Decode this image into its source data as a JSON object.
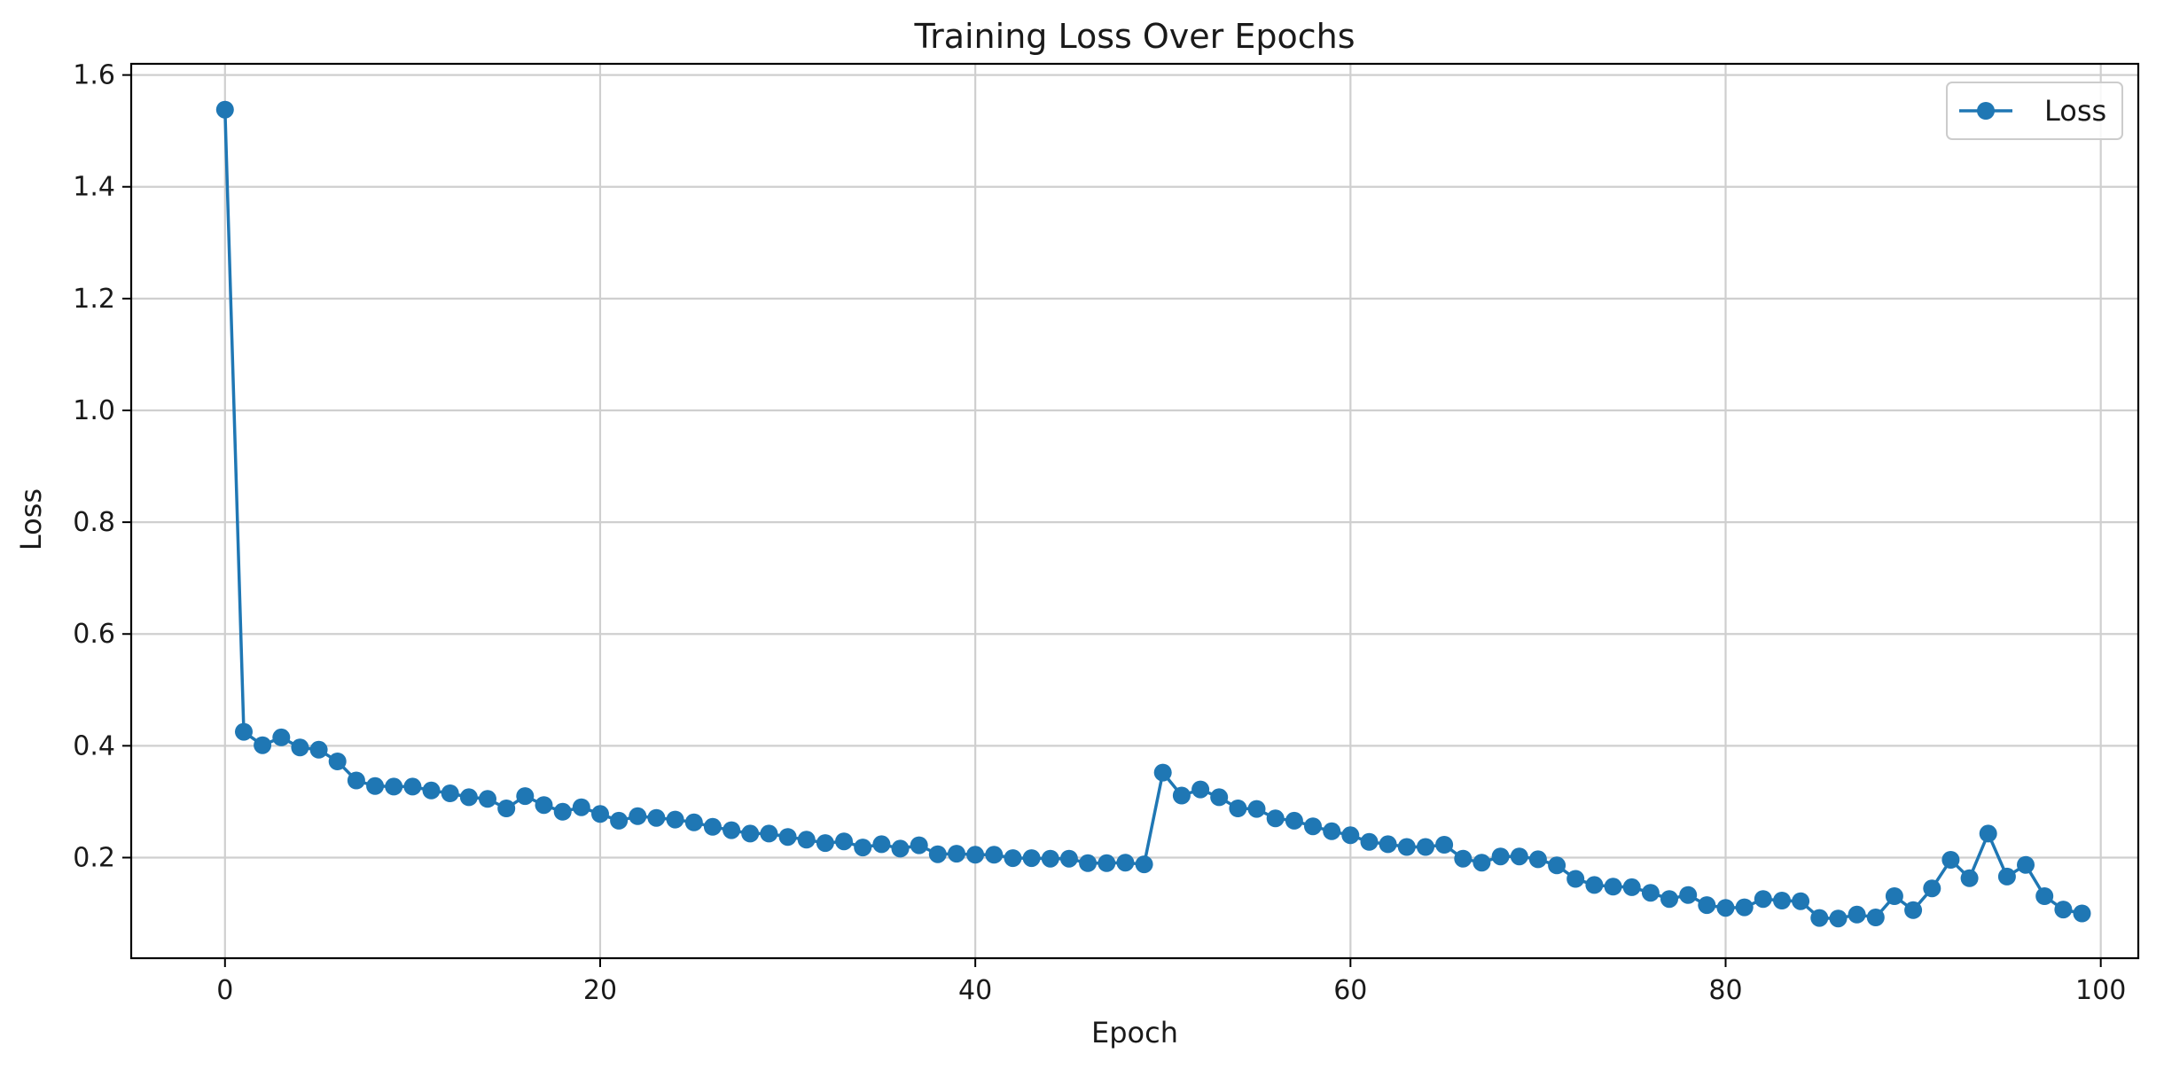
{
  "chart_data": {
    "type": "line",
    "title": "Training Loss Over Epochs",
    "xlabel": "Epoch",
    "ylabel": "Loss",
    "xlim": [
      -5,
      102
    ],
    "ylim": [
      0.02,
      1.62
    ],
    "xticks": [
      0,
      20,
      40,
      60,
      80,
      100
    ],
    "yticks": [
      0.2,
      0.4,
      0.6,
      0.8,
      1.0,
      1.2,
      1.4,
      1.6
    ],
    "ytick_labels": [
      "0.2",
      "0.4",
      "0.6",
      "0.8",
      "1.0",
      "1.2",
      "1.4",
      "1.6"
    ],
    "grid": true,
    "legend_position": "top-right",
    "marker": "circle",
    "series": [
      {
        "name": "Loss",
        "color": "#1f77b4",
        "x": [
          0,
          1,
          2,
          3,
          4,
          5,
          6,
          7,
          8,
          9,
          10,
          11,
          12,
          13,
          14,
          15,
          16,
          17,
          18,
          19,
          20,
          21,
          22,
          23,
          24,
          25,
          26,
          27,
          28,
          29,
          30,
          31,
          32,
          33,
          34,
          35,
          36,
          37,
          38,
          39,
          40,
          41,
          42,
          43,
          44,
          45,
          46,
          47,
          48,
          49,
          50,
          51,
          52,
          53,
          54,
          55,
          56,
          57,
          58,
          59,
          60,
          61,
          62,
          63,
          64,
          65,
          66,
          67,
          68,
          69,
          70,
          71,
          72,
          73,
          74,
          75,
          76,
          77,
          78,
          79,
          80,
          81,
          82,
          83,
          84,
          85,
          86,
          87,
          88,
          89,
          90,
          91,
          92,
          93,
          94,
          95,
          96,
          97,
          98,
          99
        ],
        "values": [
          1.538,
          0.425,
          0.401,
          0.415,
          0.397,
          0.393,
          0.372,
          0.338,
          0.328,
          0.327,
          0.327,
          0.32,
          0.315,
          0.308,
          0.305,
          0.288,
          0.31,
          0.294,
          0.282,
          0.29,
          0.278,
          0.266,
          0.274,
          0.271,
          0.268,
          0.263,
          0.255,
          0.249,
          0.243,
          0.243,
          0.237,
          0.232,
          0.226,
          0.229,
          0.218,
          0.224,
          0.216,
          0.222,
          0.206,
          0.207,
          0.205,
          0.205,
          0.199,
          0.199,
          0.198,
          0.198,
          0.19,
          0.19,
          0.191,
          0.188,
          0.352,
          0.311,
          0.322,
          0.308,
          0.288,
          0.287,
          0.27,
          0.266,
          0.256,
          0.247,
          0.24,
          0.228,
          0.224,
          0.219,
          0.219,
          0.223,
          0.198,
          0.191,
          0.202,
          0.202,
          0.197,
          0.186,
          0.162,
          0.151,
          0.148,
          0.147,
          0.137,
          0.126,
          0.133,
          0.115,
          0.11,
          0.111,
          0.126,
          0.123,
          0.122,
          0.092,
          0.091,
          0.098,
          0.093,
          0.131,
          0.106,
          0.145,
          0.196,
          0.163,
          0.243,
          0.166,
          0.187,
          0.131,
          0.107,
          0.1
        ]
      }
    ]
  }
}
